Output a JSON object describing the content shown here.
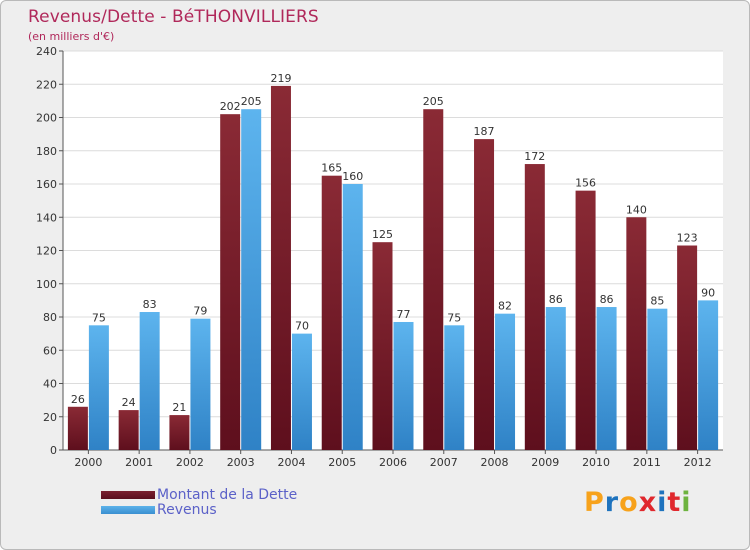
{
  "header": {
    "title": "Revenus/Dette - BéTHONVILLIERS",
    "subtitle": "(en milliers d'€)"
  },
  "legend": {
    "debt_label": "Montant de la Dette",
    "revenue_label": "Revenus"
  },
  "logo": {
    "text": "Proxiti",
    "letters": [
      "P",
      "r",
      "o",
      "x",
      "i",
      "t",
      "i"
    ],
    "colors": [
      "#f7a21b",
      "#1e73be",
      "#f7a21b",
      "#e0282d",
      "#1e73be",
      "#e0282d",
      "#6db33f"
    ]
  },
  "colors": {
    "debt": "#6e1a26",
    "revenue": "#4aa3e4",
    "text": "#b0285a",
    "legend": "#5b61c8"
  },
  "chart_data": {
    "type": "bar",
    "title": "Revenus/Dette - BéTHONVILLIERS",
    "subtitle": "(en milliers d'€)",
    "xlabel": "",
    "ylabel": "",
    "ylim": [
      0,
      240
    ],
    "yticks": [
      0,
      20,
      40,
      60,
      80,
      100,
      120,
      140,
      160,
      180,
      200,
      220,
      240
    ],
    "grid": true,
    "categories": [
      "2000",
      "2001",
      "2002",
      "2003",
      "2004",
      "2005",
      "2006",
      "2007",
      "2008",
      "2009",
      "2010",
      "2011",
      "2012"
    ],
    "series": [
      {
        "name": "Montant de la Dette",
        "values": [
          26,
          24,
          21,
          202,
          219,
          165,
          125,
          205,
          187,
          172,
          156,
          140,
          123
        ]
      },
      {
        "name": "Revenus",
        "values": [
          75,
          83,
          79,
          205,
          70,
          160,
          77,
          75,
          82,
          86,
          86,
          85,
          90
        ]
      }
    ]
  }
}
